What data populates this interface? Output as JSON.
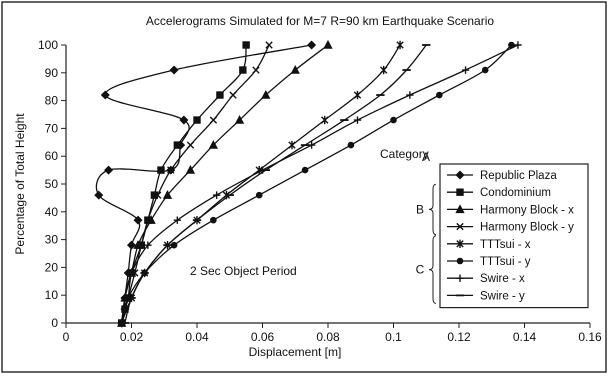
{
  "chart_data": {
    "type": "line",
    "title": "Accelerograms Simulated for M=7 R=90 km Earthquake Scenario",
    "xlabel": "Displacement [m]",
    "ylabel": "Percentage of Total Height",
    "xlim": [
      0,
      0.16
    ],
    "ylim": [
      0,
      100
    ],
    "xticks": [
      "0",
      "0.02",
      "0.04",
      "0.06",
      "0.08",
      "0.1",
      "0.12",
      "0.14",
      "0.16"
    ],
    "yticks": [
      "0",
      "10",
      "20",
      "30",
      "40",
      "50",
      "60",
      "70",
      "80",
      "90",
      "100"
    ],
    "grid": false,
    "legend_title": "Category",
    "legend_position": "right",
    "annotation": "2 Sec Object Period",
    "groups": [
      {
        "label": "A",
        "series": [
          "Republic Plaza"
        ]
      },
      {
        "label": "B",
        "series": [
          "Condominium",
          "Harmony Block - x",
          "Harmony Block - y"
        ]
      },
      {
        "label": "C",
        "series": [
          "TTTsui - x",
          "TTTsui - y",
          "Swire - x",
          "Swire - y"
        ]
      }
    ],
    "series": [
      {
        "name": "Republic Plaza",
        "marker": "diamond",
        "x": [
          0.075,
          0.033,
          0.012,
          0.036,
          0.035,
          0.032,
          0.013,
          0.01,
          0.022,
          0.02,
          0.019,
          0.018,
          0.018,
          0.017
        ],
        "y": [
          100,
          91,
          82,
          73,
          64,
          55,
          55,
          46,
          37,
          28,
          18,
          9,
          5,
          0
        ]
      },
      {
        "name": "Condominium",
        "marker": "square",
        "x": [
          0.055,
          0.054,
          0.047,
          0.04,
          0.034,
          0.029,
          0.027,
          0.025,
          0.023,
          0.02,
          0.019,
          0.018,
          0.017
        ],
        "y": [
          100,
          91,
          82,
          73,
          64,
          55,
          46,
          37,
          28,
          18,
          9,
          5,
          0
        ]
      },
      {
        "name": "Harmony Block - x",
        "marker": "triangle",
        "x": [
          0.08,
          0.07,
          0.061,
          0.053,
          0.045,
          0.038,
          0.031,
          0.026,
          0.022,
          0.02,
          0.018,
          0.017
        ],
        "y": [
          100,
          91,
          82,
          73,
          64,
          55,
          46,
          37,
          28,
          18,
          9,
          0
        ]
      },
      {
        "name": "Harmony Block - y",
        "marker": "x",
        "x": [
          0.062,
          0.058,
          0.051,
          0.045,
          0.038,
          0.032,
          0.028,
          0.025,
          0.023,
          0.021,
          0.019,
          0.017
        ],
        "y": [
          100,
          91,
          82,
          73,
          64,
          55,
          46,
          37,
          28,
          18,
          9,
          0
        ]
      },
      {
        "name": "TTTsui - x",
        "marker": "star",
        "x": [
          0.102,
          0.097,
          0.089,
          0.079,
          0.069,
          0.059,
          0.049,
          0.04,
          0.031,
          0.024,
          0.02,
          0.017
        ],
        "y": [
          100,
          91,
          82,
          73,
          64,
          55,
          46,
          37,
          28,
          18,
          9,
          0
        ]
      },
      {
        "name": "TTTsui - y",
        "marker": "circle",
        "x": [
          0.136,
          0.128,
          0.114,
          0.1,
          0.087,
          0.073,
          0.059,
          0.045,
          0.033,
          0.024,
          0.019,
          0.017
        ],
        "y": [
          100,
          91,
          82,
          73,
          64,
          55,
          46,
          37,
          28,
          18,
          9,
          0
        ]
      },
      {
        "name": "Swire - x",
        "marker": "plus",
        "x": [
          0.138,
          0.122,
          0.105,
          0.089,
          0.075,
          0.06,
          0.046,
          0.034,
          0.025,
          0.02,
          0.018,
          0.017
        ],
        "y": [
          100,
          91,
          82,
          73,
          64,
          55,
          46,
          37,
          28,
          18,
          9,
          0
        ]
      },
      {
        "name": "Swire - y",
        "marker": "dash",
        "x": [
          0.11,
          0.104,
          0.096,
          0.085,
          0.073,
          0.061,
          0.05,
          0.04,
          0.031,
          0.024,
          0.02,
          0.018
        ],
        "y": [
          100,
          91,
          82,
          73,
          64,
          55,
          46,
          37,
          28,
          18,
          9,
          0
        ]
      }
    ]
  }
}
